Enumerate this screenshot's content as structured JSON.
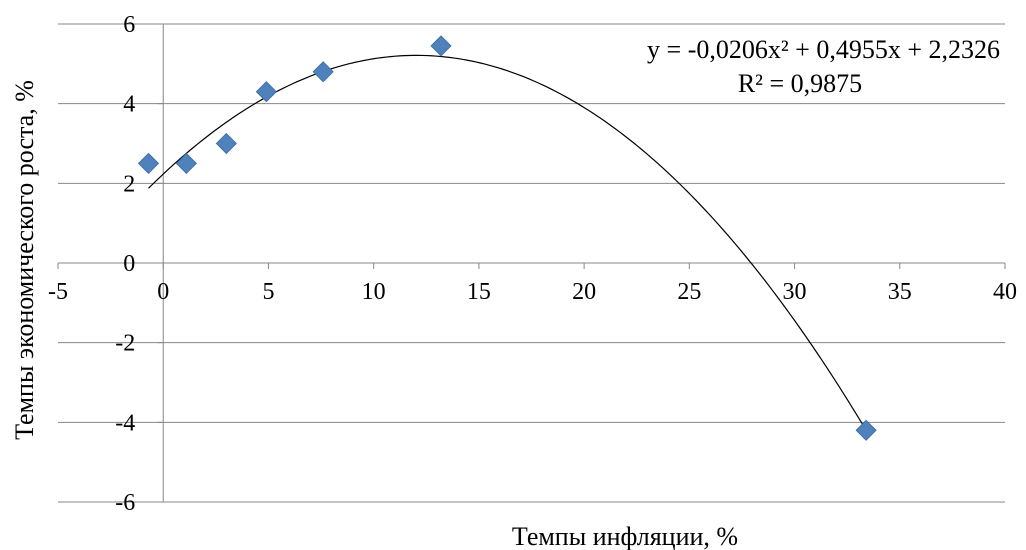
{
  "chart_data": {
    "type": "scatter",
    "xlabel": "Темпы инфляции, %",
    "ylabel": "Темпы экономического роста, %",
    "xlim": [
      -5,
      40
    ],
    "ylim": [
      -6,
      6
    ],
    "x_ticks": [
      "-5",
      "0",
      "5",
      "10",
      "15",
      "20",
      "25",
      "30",
      "35",
      "40"
    ],
    "y_ticks": [
      "6",
      "4",
      "2",
      "0",
      "-2",
      "-4",
      "-6"
    ],
    "grid": "horizontal",
    "series": [
      {
        "marker": "diamond",
        "color": "#4F81BD",
        "points": [
          {
            "x": -0.7,
            "y": 2.5
          },
          {
            "x": 1.1,
            "y": 2.5
          },
          {
            "x": 3.0,
            "y": 3.0
          },
          {
            "x": 4.9,
            "y": 4.3
          },
          {
            "x": 7.6,
            "y": 4.8
          },
          {
            "x": 13.2,
            "y": 5.45
          },
          {
            "x": 33.4,
            "y": -4.2
          }
        ]
      }
    ],
    "trendline": {
      "type": "polynomial",
      "coefficients": [
        -0.0206,
        0.4955,
        2.2326
      ],
      "x_range": [
        -0.7,
        33.4
      ],
      "color": "#000000",
      "equation": "y = -0,0206x² + 0,4955x + 2,2326",
      "r_squared": "R² = 0,9875"
    }
  }
}
